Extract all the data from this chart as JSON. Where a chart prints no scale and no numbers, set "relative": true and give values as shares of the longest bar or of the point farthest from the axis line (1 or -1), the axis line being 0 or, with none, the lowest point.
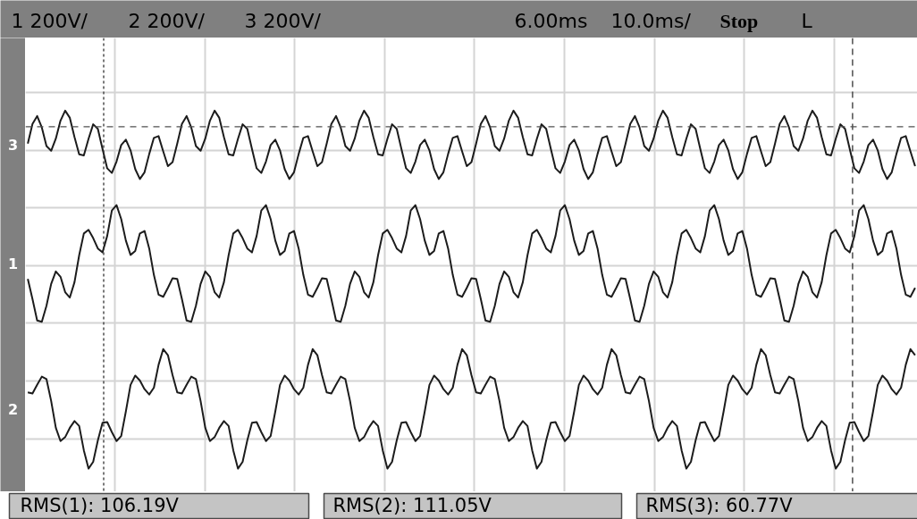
{
  "chart_data": {
    "type": "line",
    "relative": true,
    "grid": true,
    "categories": [
      null,
      null,
      null,
      null,
      null,
      null,
      null,
      null,
      null,
      null,
      null,
      null,
      null,
      null,
      null,
      null,
      null,
      null,
      null,
      null,
      null,
      null,
      null,
      null,
      null,
      null,
      null,
      null,
      null,
      null,
      null,
      null,
      null,
      null,
      null,
      null,
      null,
      null,
      null,
      null,
      null,
      null,
      null,
      null,
      null,
      null,
      null,
      null,
      null,
      null,
      null,
      null,
      null,
      null,
      null,
      null,
      null,
      null,
      null,
      null,
      null,
      null,
      null,
      null,
      null,
      null,
      null,
      null,
      null,
      null,
      null,
      null,
      null,
      null,
      null,
      null,
      null,
      null,
      null,
      null,
      null,
      null,
      null,
      null,
      null,
      null,
      null,
      null,
      null,
      null,
      null,
      null,
      null,
      null,
      null,
      null,
      null,
      null,
      null,
      null,
      null,
      null,
      null,
      null,
      null,
      null,
      null,
      null,
      null,
      null,
      null,
      null,
      null,
      null,
      null,
      null,
      null,
      null,
      null,
      null,
      null,
      null,
      null,
      null,
      null,
      null,
      null,
      null,
      null,
      null,
      null,
      null,
      null,
      null,
      null,
      null,
      null,
      null,
      null,
      null,
      null,
      null,
      null,
      null,
      null,
      null,
      null,
      null,
      null,
      null,
      null,
      null,
      null,
      null,
      null,
      null,
      null,
      null,
      null,
      null,
      null,
      null,
      null,
      null,
      null,
      null,
      null,
      null,
      null,
      null,
      null,
      null,
      null,
      null,
      null,
      null,
      null,
      null,
      null,
      null,
      null,
      null,
      null,
      null,
      null,
      null,
      null,
      null,
      null,
      null,
      null
    ],
    "annotations": [
      "1 200V/",
      "2 200V/",
      "3 200V/",
      "6.00ms",
      "10.0ms/",
      "Stop",
      "L",
      "RMS(1): 106.19V",
      "RMS(2): 111.05V",
      "RMS(3): 60.77V"
    ],
    "ref_lines": [
      {
        "axis": "y",
        "value": 0.955,
        "line_style": "dashed",
        "color": "#505050"
      }
    ],
    "series": [
      {
        "name": "1",
        "color": "#1c1c1c",
        "values": [
          0.53,
          0.474,
          0.414,
          0.41,
          0.455,
          0.516,
          0.551,
          0.536,
          0.493,
          0.478,
          0.521,
          0.596,
          0.657,
          0.667,
          0.644,
          0.615,
          0.604,
          0.65,
          0.721,
          0.736,
          0.697,
          0.637,
          0.597,
          0.608,
          0.657,
          0.664,
          0.615,
          0.541,
          0.486,
          0.48,
          0.505,
          0.532,
          0.53,
          0.474,
          0.414,
          0.41,
          0.455,
          0.516,
          0.551,
          0.536,
          0.493,
          0.478,
          0.521,
          0.596,
          0.657,
          0.667,
          0.644,
          0.615,
          0.604,
          0.65,
          0.721,
          0.736,
          0.697,
          0.637,
          0.597,
          0.608,
          0.657,
          0.664,
          0.615,
          0.541,
          0.486,
          0.48,
          0.505,
          0.532,
          0.53,
          0.474,
          0.414,
          0.41,
          0.455,
          0.516,
          0.551,
          0.536,
          0.493,
          0.478,
          0.521,
          0.596,
          0.657,
          0.667,
          0.644,
          0.615,
          0.604,
          0.65,
          0.721,
          0.736,
          0.697,
          0.637,
          0.597,
          0.608,
          0.657,
          0.664,
          0.615,
          0.541,
          0.486,
          0.48,
          0.505,
          0.532,
          0.53,
          0.474,
          0.414,
          0.41,
          0.455,
          0.516,
          0.551,
          0.536,
          0.493,
          0.478,
          0.521,
          0.596,
          0.657,
          0.667,
          0.644,
          0.615,
          0.604,
          0.65,
          0.721,
          0.736,
          0.697,
          0.637,
          0.597,
          0.608,
          0.657,
          0.664,
          0.615,
          0.541,
          0.486,
          0.48,
          0.505,
          0.532,
          0.53,
          0.474,
          0.414,
          0.41,
          0.455,
          0.516,
          0.551,
          0.536,
          0.493,
          0.478,
          0.521,
          0.596,
          0.657,
          0.667,
          0.644,
          0.615,
          0.604,
          0.65,
          0.721,
          0.736,
          0.697,
          0.637,
          0.597,
          0.608,
          0.657,
          0.664,
          0.615,
          0.541,
          0.486,
          0.48,
          0.505,
          0.532,
          0.53,
          0.474,
          0.414,
          0.41,
          0.455,
          0.516,
          0.551,
          0.536,
          0.493,
          0.478,
          0.521,
          0.596,
          0.657,
          0.667,
          0.644,
          0.615,
          0.604,
          0.65,
          0.721,
          0.736,
          0.697,
          0.637,
          0.597,
          0.608,
          0.657,
          0.664,
          0.615,
          0.541,
          0.486,
          0.48,
          0.505
        ]
      },
      {
        "name": "2",
        "color": "#1c1c1c",
        "values": [
          0.213,
          0.21,
          0.234,
          0.257,
          0.25,
          0.189,
          0.114,
          0.077,
          0.088,
          0.114,
          0.133,
          0.119,
          0.051,
          0,
          0.019,
          0.079,
          0.128,
          0.13,
          0.102,
          0.077,
          0.091,
          0.16,
          0.234,
          0.26,
          0.246,
          0.222,
          0.207,
          0.226,
          0.29,
          0.334,
          0.317,
          0.261,
          0.213,
          0.21,
          0.234,
          0.257,
          0.25,
          0.189,
          0.114,
          0.077,
          0.088,
          0.114,
          0.133,
          0.119,
          0.051,
          0,
          0.019,
          0.079,
          0.128,
          0.13,
          0.102,
          0.077,
          0.091,
          0.16,
          0.234,
          0.26,
          0.246,
          0.222,
          0.207,
          0.226,
          0.29,
          0.334,
          0.317,
          0.261,
          0.213,
          0.21,
          0.234,
          0.257,
          0.25,
          0.189,
          0.114,
          0.077,
          0.088,
          0.114,
          0.133,
          0.119,
          0.051,
          0,
          0.019,
          0.079,
          0.128,
          0.13,
          0.102,
          0.077,
          0.091,
          0.16,
          0.234,
          0.26,
          0.246,
          0.222,
          0.207,
          0.226,
          0.29,
          0.334,
          0.317,
          0.261,
          0.213,
          0.21,
          0.234,
          0.257,
          0.25,
          0.189,
          0.114,
          0.077,
          0.088,
          0.114,
          0.133,
          0.119,
          0.051,
          0,
          0.019,
          0.079,
          0.128,
          0.13,
          0.102,
          0.077,
          0.091,
          0.16,
          0.234,
          0.26,
          0.246,
          0.222,
          0.207,
          0.226,
          0.29,
          0.334,
          0.317,
          0.261,
          0.213,
          0.21,
          0.234,
          0.257,
          0.25,
          0.189,
          0.114,
          0.077,
          0.088,
          0.114,
          0.133,
          0.119,
          0.051,
          0,
          0.019,
          0.079,
          0.128,
          0.13,
          0.102,
          0.077,
          0.091,
          0.16,
          0.234,
          0.26,
          0.246,
          0.222,
          0.207,
          0.226,
          0.29,
          0.334,
          0.317,
          0.261,
          0.213,
          0.21,
          0.234,
          0.257,
          0.25,
          0.189,
          0.114,
          0.077,
          0.088,
          0.114,
          0.133,
          0.119,
          0.051,
          0,
          0.019,
          0.079,
          0.128,
          0.13,
          0.102,
          0.077,
          0.091,
          0.16,
          0.234,
          0.26,
          0.246,
          0.222,
          0.207,
          0.226,
          0.29,
          0.334,
          0.317
        ]
      },
      {
        "name": "3",
        "color": "#1c1c1c",
        "values": [
          0.908,
          0.963,
          0.985,
          0.953,
          0.901,
          0.888,
          0.922,
          0.972,
          1,
          0.98,
          0.926,
          0.878,
          0.875,
          0.921,
          0.962,
          0.949,
          0.893,
          0.839,
          0.826,
          0.858,
          0.904,
          0.919,
          0.889,
          0.837,
          0.809,
          0.828,
          0.879,
          0.924,
          0.929,
          0.886,
          0.845,
          0.856,
          0.908,
          0.963,
          0.985,
          0.953,
          0.901,
          0.888,
          0.922,
          0.972,
          1,
          0.98,
          0.926,
          0.878,
          0.875,
          0.921,
          0.962,
          0.949,
          0.893,
          0.839,
          0.826,
          0.858,
          0.904,
          0.919,
          0.889,
          0.837,
          0.809,
          0.828,
          0.879,
          0.924,
          0.929,
          0.886,
          0.845,
          0.856,
          0.908,
          0.963,
          0.985,
          0.953,
          0.901,
          0.888,
          0.922,
          0.972,
          1,
          0.98,
          0.926,
          0.878,
          0.875,
          0.921,
          0.962,
          0.949,
          0.893,
          0.839,
          0.826,
          0.858,
          0.904,
          0.919,
          0.889,
          0.837,
          0.809,
          0.828,
          0.879,
          0.924,
          0.929,
          0.886,
          0.845,
          0.856,
          0.908,
          0.963,
          0.985,
          0.953,
          0.901,
          0.888,
          0.922,
          0.972,
          1,
          0.98,
          0.926,
          0.878,
          0.875,
          0.921,
          0.962,
          0.949,
          0.893,
          0.839,
          0.826,
          0.858,
          0.904,
          0.919,
          0.889,
          0.837,
          0.809,
          0.828,
          0.879,
          0.924,
          0.929,
          0.886,
          0.845,
          0.856,
          0.908,
          0.963,
          0.985,
          0.953,
          0.901,
          0.888,
          0.922,
          0.972,
          1,
          0.98,
          0.926,
          0.878,
          0.875,
          0.921,
          0.962,
          0.949,
          0.893,
          0.839,
          0.826,
          0.858,
          0.904,
          0.919,
          0.889,
          0.837,
          0.809,
          0.828,
          0.879,
          0.924,
          0.929,
          0.886,
          0.845,
          0.856,
          0.908,
          0.963,
          0.985,
          0.953,
          0.901,
          0.888,
          0.922,
          0.972,
          1,
          0.98,
          0.926,
          0.878,
          0.875,
          0.921,
          0.962,
          0.949,
          0.893,
          0.839,
          0.826,
          0.858,
          0.904,
          0.919,
          0.889,
          0.837,
          0.809,
          0.828,
          0.879,
          0.924,
          0.929,
          0.886,
          0.845
        ]
      }
    ]
  }
}
